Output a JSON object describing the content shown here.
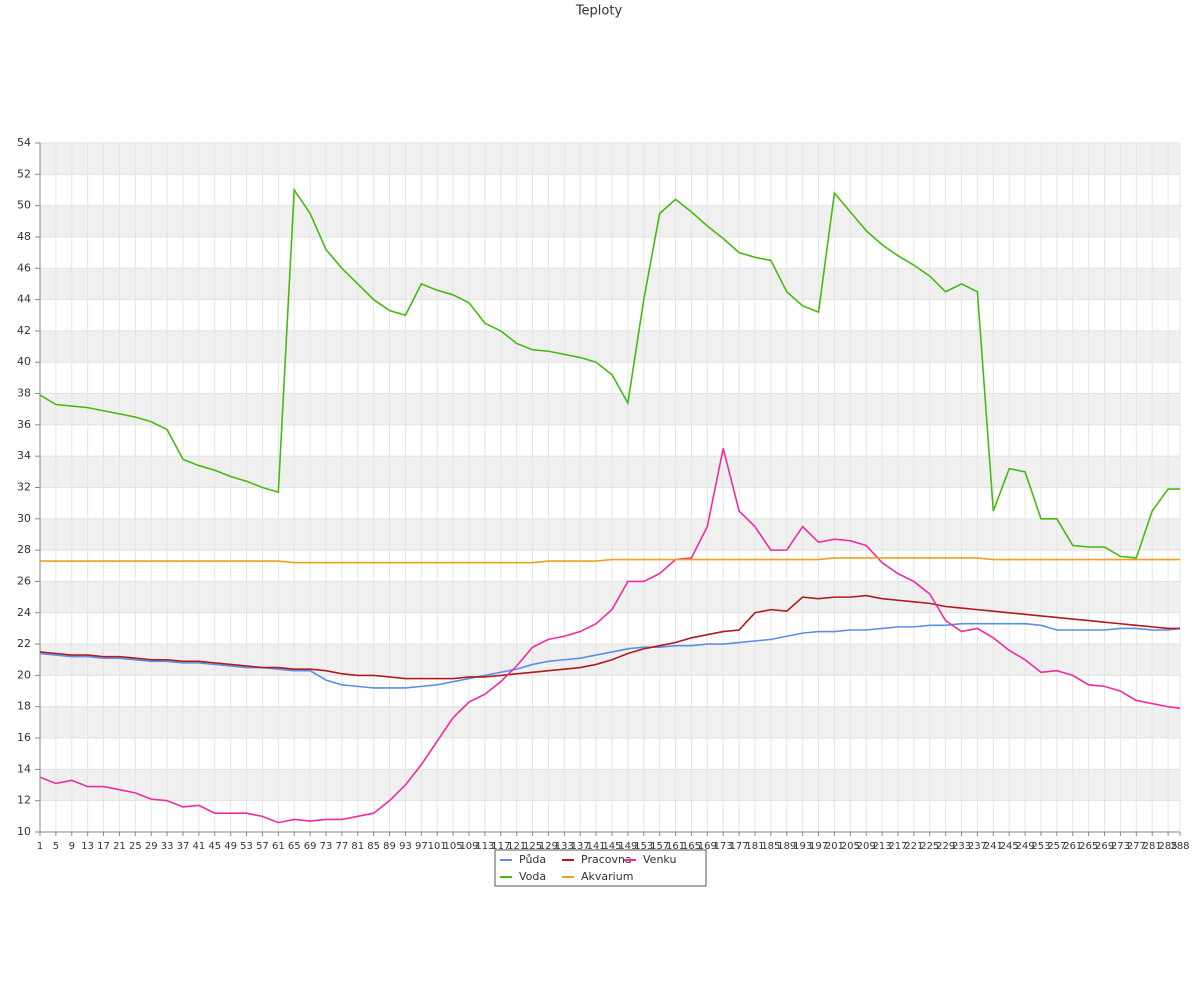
{
  "chart_data": {
    "type": "line",
    "title": "Teploty",
    "x": [
      1,
      5,
      9,
      13,
      17,
      21,
      25,
      29,
      33,
      37,
      41,
      45,
      49,
      53,
      57,
      61,
      65,
      69,
      73,
      77,
      81,
      85,
      89,
      93,
      97,
      101,
      105,
      109,
      113,
      117,
      121,
      125,
      129,
      133,
      137,
      141,
      145,
      149,
      153,
      157,
      161,
      165,
      169,
      173,
      177,
      181,
      185,
      189,
      193,
      197,
      201,
      205,
      209,
      213,
      217,
      221,
      225,
      229,
      233,
      237,
      241,
      245,
      249,
      253,
      257,
      261,
      265,
      269,
      273,
      277,
      281,
      285,
      288
    ],
    "xlim": [
      1,
      288
    ],
    "ylim": [
      10,
      54
    ],
    "yticks": [
      10,
      12,
      14,
      16,
      18,
      20,
      22,
      24,
      26,
      28,
      30,
      32,
      34,
      36,
      38,
      40,
      42,
      44,
      46,
      48,
      50,
      52,
      54
    ],
    "grid": true,
    "legend": "bottom",
    "series": [
      {
        "name": "Půda",
        "color": "#5b8fe8",
        "values": [
          21.4,
          21.3,
          21.2,
          21.2,
          21.1,
          21.1,
          21.0,
          20.9,
          20.9,
          20.8,
          20.8,
          20.7,
          20.6,
          20.5,
          20.5,
          20.4,
          20.3,
          20.3,
          19.7,
          19.4,
          19.3,
          19.2,
          19.2,
          19.2,
          19.3,
          19.4,
          19.6,
          19.8,
          20.0,
          20.2,
          20.4,
          20.7,
          20.9,
          21.0,
          21.1,
          21.3,
          21.5,
          21.7,
          21.8,
          21.8,
          21.9,
          21.9,
          22.0,
          22.0,
          22.1,
          22.2,
          22.3,
          22.5,
          22.7,
          22.8,
          22.8,
          22.9,
          22.9,
          23.0,
          23.1,
          23.1,
          23.2,
          23.2,
          23.3,
          23.3,
          23.3,
          23.3,
          23.3,
          23.2,
          22.9,
          22.9,
          22.9,
          22.9,
          23.0,
          23.0,
          22.9,
          22.9,
          23.0
        ]
      },
      {
        "name": "Pracovna",
        "color": "#b01c1c",
        "values": [
          21.5,
          21.4,
          21.3,
          21.3,
          21.2,
          21.2,
          21.1,
          21.0,
          21.0,
          20.9,
          20.9,
          20.8,
          20.7,
          20.6,
          20.5,
          20.5,
          20.4,
          20.4,
          20.3,
          20.1,
          20.0,
          20.0,
          19.9,
          19.8,
          19.8,
          19.8,
          19.8,
          19.9,
          19.9,
          20.0,
          20.1,
          20.2,
          20.3,
          20.4,
          20.5,
          20.7,
          21.0,
          21.4,
          21.7,
          21.9,
          22.1,
          22.4,
          22.6,
          22.8,
          22.9,
          24.0,
          24.2,
          24.1,
          25.0,
          24.9,
          25.0,
          25.0,
          25.1,
          24.9,
          24.8,
          24.7,
          24.6,
          24.4,
          24.3,
          24.2,
          24.1,
          24.0,
          23.9,
          23.8,
          23.7,
          23.6,
          23.5,
          23.4,
          23.3,
          23.2,
          23.1,
          23.0,
          23.0
        ]
      },
      {
        "name": "Venku",
        "color": "#f02ba0",
        "values": [
          13.5,
          13.1,
          13.3,
          12.9,
          12.9,
          12.7,
          12.5,
          12.1,
          12.0,
          11.6,
          11.7,
          11.2,
          11.2,
          11.2,
          11.0,
          10.6,
          10.8,
          10.7,
          10.8,
          10.8,
          11.0,
          11.2,
          12.0,
          13.0,
          14.3,
          15.8,
          17.3,
          18.3,
          18.8,
          19.6,
          20.6,
          21.8,
          22.3,
          22.5,
          22.8,
          23.3,
          24.2,
          26.0,
          26.0,
          26.5,
          27.4,
          27.5,
          29.5,
          34.5,
          30.5,
          29.5,
          28.0,
          28.0,
          29.5,
          28.5,
          28.7,
          28.6,
          28.3,
          27.2,
          26.5,
          26.0,
          25.2,
          23.5,
          22.8,
          23.0,
          22.4,
          21.6,
          21.0,
          20.2,
          20.3,
          20.0,
          19.4,
          19.3,
          19.0,
          18.4,
          18.2,
          18.0,
          17.9
        ]
      },
      {
        "name": "Voda",
        "color": "#44bb11",
        "values": [
          37.9,
          37.3,
          37.2,
          37.1,
          36.9,
          36.7,
          36.5,
          36.2,
          35.7,
          33.8,
          33.4,
          33.1,
          32.7,
          32.4,
          32.0,
          31.7,
          51.0,
          49.5,
          47.2,
          46.0,
          45.0,
          44.0,
          43.3,
          43.0,
          45.0,
          44.6,
          44.3,
          43.8,
          42.5,
          42.0,
          41.2,
          40.8,
          40.7,
          40.5,
          40.3,
          40.0,
          39.2,
          37.4,
          44.0,
          49.5,
          50.4,
          49.6,
          48.7,
          47.9,
          47.0,
          46.7,
          46.5,
          44.5,
          43.6,
          43.2,
          50.8,
          49.6,
          48.4,
          47.5,
          46.8,
          46.2,
          45.5,
          44.5,
          45.0,
          44.5,
          30.5,
          33.2,
          33.0,
          30.0,
          30.0,
          28.3,
          28.2,
          28.2,
          27.6,
          27.5,
          30.5,
          31.9,
          31.9
        ]
      },
      {
        "name": "Akvarium",
        "color": "#f0a020",
        "values": [
          27.3,
          27.3,
          27.3,
          27.3,
          27.3,
          27.3,
          27.3,
          27.3,
          27.3,
          27.3,
          27.3,
          27.3,
          27.3,
          27.3,
          27.3,
          27.3,
          27.2,
          27.2,
          27.2,
          27.2,
          27.2,
          27.2,
          27.2,
          27.2,
          27.2,
          27.2,
          27.2,
          27.2,
          27.2,
          27.2,
          27.2,
          27.2,
          27.3,
          27.3,
          27.3,
          27.3,
          27.4,
          27.4,
          27.4,
          27.4,
          27.4,
          27.4,
          27.4,
          27.4,
          27.4,
          27.4,
          27.4,
          27.4,
          27.4,
          27.4,
          27.5,
          27.5,
          27.5,
          27.5,
          27.5,
          27.5,
          27.5,
          27.5,
          27.5,
          27.5,
          27.4,
          27.4,
          27.4,
          27.4,
          27.4,
          27.4,
          27.4,
          27.4,
          27.4,
          27.4,
          27.4,
          27.4,
          27.4
        ]
      }
    ]
  }
}
